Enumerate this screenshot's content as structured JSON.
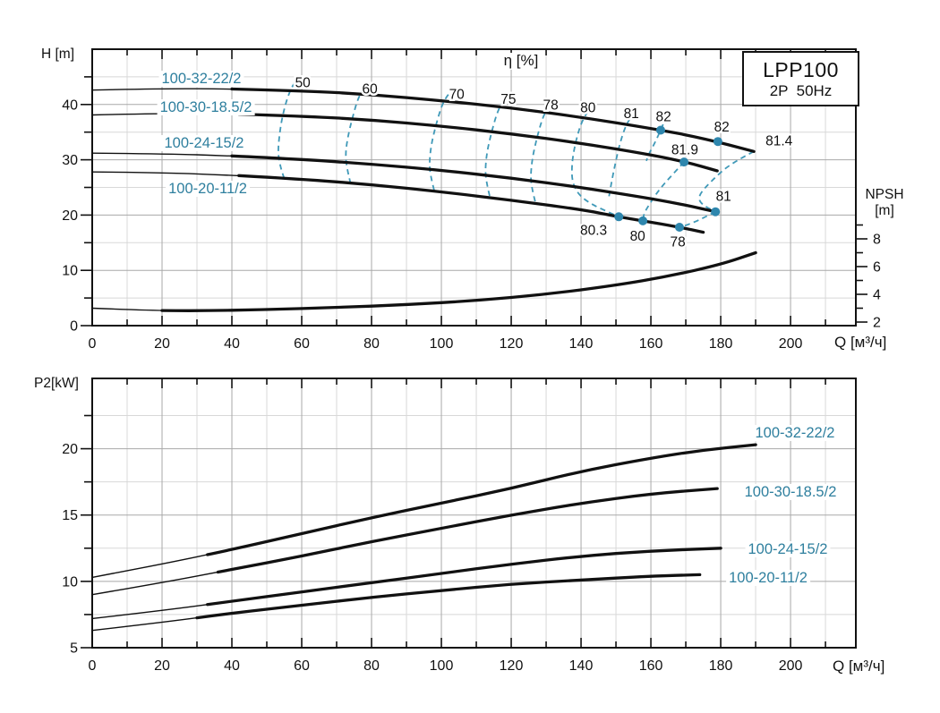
{
  "title_block": {
    "model": "LPP100",
    "spec": "2P  50Hz"
  },
  "colors": {
    "curve": "#111111",
    "teal_text": "#2e7f9e",
    "teal_dash": "#3f99b8",
    "teal_dot": "#2e86ad",
    "grid_minor": "#d8d8d8",
    "grid_major": "#a8a8a8",
    "axis": "#111111"
  },
  "chart_data": [
    {
      "type": "line",
      "title": "LPP100",
      "subtitle": "2P  50Hz",
      "xlabel": "Q [м³/ч]",
      "ylabel": "H [m]",
      "y2label": "NPSH",
      "y2label_unit": "[m]",
      "eta_label": "η [%]",
      "xlim": [
        0,
        218.7
      ],
      "ylim": [
        0,
        50
      ],
      "y2lim": [
        2,
        9.4
      ],
      "x_ticks_major": [
        0,
        20,
        40,
        60,
        80,
        100,
        120,
        140,
        160,
        180,
        200
      ],
      "x_ticks_minor": [
        10,
        30,
        50,
        70,
        90,
        110,
        130,
        150,
        170,
        190,
        210
      ],
      "y_ticks_major": [
        0,
        10,
        20,
        30,
        40
      ],
      "y_ticks_minor": [
        5,
        15,
        25,
        35,
        45
      ],
      "y2_ticks_major": [
        2,
        4,
        6,
        8
      ],
      "y2_ticks_minor": [
        3,
        5,
        7,
        9
      ],
      "series": [
        {
          "name": "100-32-22/2",
          "thick_from": 40,
          "points": [
            [
              0,
              42.6
            ],
            [
              20,
              42.9
            ],
            [
              40,
              42.8
            ],
            [
              60,
              42.5
            ],
            [
              80,
              41.8
            ],
            [
              100,
              40.7
            ],
            [
              120,
              39.4
            ],
            [
              140,
              37.7
            ],
            [
              160,
              35.7
            ],
            [
              175,
              33.9
            ],
            [
              189.5,
              31.5
            ]
          ]
        },
        {
          "name": "100-30-18.5/2",
          "thick_from": 42,
          "points": [
            [
              0,
              38.1
            ],
            [
              20,
              38.4
            ],
            [
              40,
              38.3
            ],
            [
              60,
              37.9
            ],
            [
              80,
              37.2
            ],
            [
              100,
              36.1
            ],
            [
              120,
              34.7
            ],
            [
              140,
              33.0
            ],
            [
              160,
              30.9
            ],
            [
              170,
              29.6
            ],
            [
              179,
              28.0
            ]
          ]
        },
        {
          "name": "100-24-15/2",
          "thick_from": 40,
          "points": [
            [
              0,
              31.2
            ],
            [
              20,
              31.1
            ],
            [
              40,
              30.7
            ],
            [
              60,
              30.1
            ],
            [
              80,
              29.2
            ],
            [
              100,
              28.1
            ],
            [
              120,
              26.7
            ],
            [
              140,
              25.0
            ],
            [
              160,
              23.0
            ],
            [
              170,
              21.8
            ],
            [
              178.5,
              20.6
            ]
          ]
        },
        {
          "name": "100-20-11/2",
          "thick_from": 42,
          "points": [
            [
              0,
              27.8
            ],
            [
              20,
              27.7
            ],
            [
              40,
              27.2
            ],
            [
              60,
              26.5
            ],
            [
              80,
              25.5
            ],
            [
              100,
              24.2
            ],
            [
              120,
              22.7
            ],
            [
              140,
              21.0
            ],
            [
              150.8,
              19.7
            ],
            [
              157.7,
              18.95
            ],
            [
              168.2,
              17.8
            ],
            [
              175,
              16.9
            ]
          ]
        }
      ],
      "npsh_series": {
        "name": "NPSH",
        "thick_from": 20,
        "points": [
          [
            0,
            3.0
          ],
          [
            15,
            2.85
          ],
          [
            30,
            2.8
          ],
          [
            50,
            2.9
          ],
          [
            70,
            3.05
          ],
          [
            90,
            3.25
          ],
          [
            110,
            3.55
          ],
          [
            130,
            4.0
          ],
          [
            150,
            4.65
          ],
          [
            165,
            5.3
          ],
          [
            180,
            6.15
          ],
          [
            190,
            7.0
          ]
        ]
      },
      "efficiency_contours": [
        {
          "label": "50",
          "label_at": [
            60.3,
            44.0
          ],
          "points": [
            [
              58,
              44
            ],
            [
              56.5,
              42.5
            ],
            [
              54.5,
              38.1
            ],
            [
              53.5,
              34
            ],
            [
              53.2,
              31
            ],
            [
              54,
              28.5
            ],
            [
              55,
              26.6
            ]
          ]
        },
        {
          "label": "60",
          "label_at": [
            79.5,
            42.9
          ],
          "points": [
            [
              78,
              43
            ],
            [
              76.5,
              41.9
            ],
            [
              74.5,
              37.6
            ],
            [
              73,
              33.5
            ],
            [
              72.5,
              30.5
            ],
            [
              73.2,
              27.8
            ],
            [
              74,
              25.7
            ]
          ]
        },
        {
          "label": "70",
          "label_at": [
            104.4,
            41.9
          ],
          "points": [
            [
              102,
              41.8
            ],
            [
              100.5,
              40.6
            ],
            [
              98.5,
              36.5
            ],
            [
              97,
              32.5
            ],
            [
              96.5,
              28.9
            ],
            [
              97.2,
              26.3
            ],
            [
              98,
              24.3
            ]
          ]
        },
        {
          "label": "75",
          "label_at": [
            119.2,
            41.0
          ],
          "points": [
            [
              118,
              40.8
            ],
            [
              116.5,
              39.6
            ],
            [
              114.5,
              35.4
            ],
            [
              113,
              31.3
            ],
            [
              112.5,
              27.7
            ],
            [
              113.2,
              25.1
            ],
            [
              114,
              23.0
            ]
          ]
        },
        {
          "label": "78",
          "label_at": [
            131.3,
            40.0
          ],
          "points": [
            [
              131,
              39.8
            ],
            [
              129.5,
              38.6
            ],
            [
              127.5,
              34.4
            ],
            [
              126,
              30.2
            ],
            [
              125.5,
              26.6
            ],
            [
              126.2,
              24.1
            ],
            [
              127,
              22.1
            ]
          ]
        },
        {
          "label": "80",
          "label_at": [
            142.0,
            39.5
          ],
          "points": [
            [
              142,
              38.7
            ],
            [
              140.5,
              37.5
            ],
            [
              138.5,
              33.5
            ],
            [
              137.3,
              29.3
            ],
            [
              137.5,
              25.4
            ],
            [
              141,
              22.5
            ],
            [
              150.8,
              19.7
            ]
          ]
        },
        {
          "label": "81",
          "label_at": [
            154.4,
            38.4
          ],
          "points": [
            [
              154,
              37.4
            ],
            [
              152.8,
              36.3
            ],
            [
              151,
              32.7
            ],
            [
              149.8,
              29.3
            ],
            [
              148.8,
              26.2
            ],
            [
              148,
              23.3
            ]
          ]
        },
        {
          "label": "",
          "label_at": null,
          "points": [
            [
              163.5,
              36.4
            ],
            [
              162.8,
              35.36
            ],
            [
              161,
              32.9
            ],
            [
              159.3,
              30.9
            ],
            [
              158.7,
              29.8
            ]
          ]
        },
        {
          "label": "",
          "label_at": null,
          "points": [
            [
              189.5,
              31.5
            ],
            [
              183,
              29.4
            ],
            [
              177.5,
              26.3
            ],
            [
              173.5,
              23.5
            ],
            [
              174.3,
              22.0
            ],
            [
              178.5,
              20.6
            ]
          ]
        },
        {
          "label": "",
          "label_at": null,
          "points": [
            [
              178.5,
              20.6
            ],
            [
              174.5,
              19.3
            ],
            [
              170.8,
              18.3
            ],
            [
              168.2,
              17.8
            ]
          ]
        },
        {
          "label": "",
          "label_at": null,
          "points": [
            [
              169.5,
              29.6
            ],
            [
              166,
              27.2
            ],
            [
              162.5,
              24.7
            ],
            [
              159.8,
              22.2
            ],
            [
              158,
              20.3
            ],
            [
              157.7,
              18.95
            ]
          ]
        }
      ],
      "duty_points": [
        {
          "value": "82",
          "at": [
            162.8,
            35.36
          ],
          "label_at": [
            163.6,
            37.9
          ]
        },
        {
          "value": "82",
          "at": [
            179.2,
            33.3
          ],
          "label_at": [
            180.3,
            36.0
          ]
        },
        {
          "value": "81.9",
          "at": [
            169.5,
            29.6
          ],
          "label_at": [
            169.7,
            31.9
          ]
        },
        {
          "value": "81",
          "at": [
            178.5,
            20.6
          ],
          "label_at": [
            180.8,
            23.5
          ]
        },
        {
          "value": "80.3",
          "at": [
            150.8,
            19.7
          ],
          "label_at": [
            143.6,
            17.3
          ]
        },
        {
          "value": "80",
          "at": [
            157.7,
            18.95
          ],
          "label_at": [
            156.2,
            16.3
          ]
        },
        {
          "value": "78",
          "at": [
            168.2,
            17.8
          ],
          "label_at": [
            167.7,
            15.2
          ]
        }
      ],
      "extra_labels": [
        {
          "text": "81.4",
          "at": [
            196.7,
            33.5
          ]
        }
      ]
    },
    {
      "type": "line",
      "title": "",
      "xlabel": "Q [м³/ч]",
      "ylabel": "P2[kW]",
      "xlim": [
        0,
        218.7
      ],
      "ylim": [
        5,
        25.3
      ],
      "x_ticks_major": [
        0,
        20,
        40,
        60,
        80,
        100,
        120,
        140,
        160,
        180,
        200
      ],
      "x_ticks_minor": [
        10,
        30,
        50,
        70,
        90,
        110,
        130,
        150,
        170,
        190,
        210
      ],
      "y_ticks_major": [
        5,
        10,
        15,
        20
      ],
      "y_ticks_minor": [
        7.5,
        12.5,
        17.5,
        22.5
      ],
      "series": [
        {
          "name": "100-32-22/2",
          "thick_from": 33,
          "points": [
            [
              0,
              10.3
            ],
            [
              20,
              11.3
            ],
            [
              40,
              12.4
            ],
            [
              60,
              13.6
            ],
            [
              80,
              14.8
            ],
            [
              100,
              15.9
            ],
            [
              120,
              17.0
            ],
            [
              140,
              18.3
            ],
            [
              160,
              19.3
            ],
            [
              175,
              19.9
            ],
            [
              190,
              20.3
            ]
          ]
        },
        {
          "name": "100-30-18.5/2",
          "thick_from": 36,
          "points": [
            [
              0,
              9.0
            ],
            [
              20,
              9.9
            ],
            [
              40,
              10.9
            ],
            [
              60,
              11.9
            ],
            [
              80,
              13.0
            ],
            [
              100,
              14.0
            ],
            [
              120,
              15.0
            ],
            [
              140,
              15.9
            ],
            [
              160,
              16.6
            ],
            [
              179,
              17.0
            ]
          ]
        },
        {
          "name": "100-24-15/2",
          "thick_from": 33,
          "points": [
            [
              0,
              7.2
            ],
            [
              20,
              7.8
            ],
            [
              40,
              8.5
            ],
            [
              60,
              9.2
            ],
            [
              80,
              9.9
            ],
            [
              100,
              10.6
            ],
            [
              120,
              11.3
            ],
            [
              140,
              11.9
            ],
            [
              160,
              12.3
            ],
            [
              180,
              12.5
            ]
          ]
        },
        {
          "name": "100-20-11/2",
          "thick_from": 30,
          "points": [
            [
              0,
              6.3
            ],
            [
              20,
              6.9
            ],
            [
              40,
              7.6
            ],
            [
              60,
              8.2
            ],
            [
              80,
              8.8
            ],
            [
              100,
              9.3
            ],
            [
              120,
              9.8
            ],
            [
              140,
              10.1
            ],
            [
              160,
              10.4
            ],
            [
              174,
              10.5
            ]
          ]
        }
      ]
    }
  ]
}
